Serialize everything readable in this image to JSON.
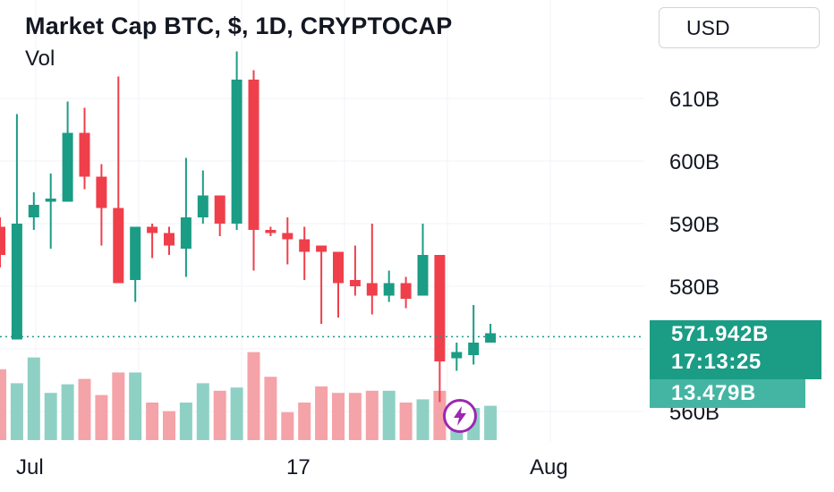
{
  "header": {
    "title": "Market Cap BTC, $, 1D, CRYPTOCAP",
    "indicator": "Vol",
    "currency": "USD"
  },
  "price_tag": {
    "value": "571.942B",
    "countdown": "17:13:25"
  },
  "volume_tag": {
    "value": "13.479B"
  },
  "colors": {
    "up": "#1b9c85",
    "down": "#ef3f4b",
    "up_vol": "#8fd0c5",
    "down_vol": "#f4a3a8",
    "price_line": "#1b9c85"
  },
  "icons": {
    "alert": "lightning-bolt-icon"
  },
  "chart_data": {
    "type": "candlestick",
    "y_unit": "B USD",
    "ylim": [
      560,
      620
    ],
    "y_ticks": [
      "610B",
      "600B",
      "590B",
      "580B",
      "560B"
    ],
    "y_tick_values": [
      610,
      600,
      590,
      580,
      560
    ],
    "x_ticks": [
      "Jul",
      "17",
      "Aug"
    ],
    "last_price": 571.942,
    "grid": true,
    "candles": [
      {
        "o": 589.5,
        "h": 591.0,
        "l": 583.0,
        "c": 585.0,
        "v": 0.66
      },
      {
        "o": 571.5,
        "h": 607.5,
        "l": 571.5,
        "c": 590.0,
        "v": 0.53
      },
      {
        "o": 591.0,
        "h": 595.0,
        "l": 589.0,
        "c": 593.0,
        "v": 0.77
      },
      {
        "o": 593.5,
        "h": 598.0,
        "l": 586.0,
        "c": 594.0,
        "v": 0.44
      },
      {
        "o": 593.5,
        "h": 609.5,
        "l": 593.5,
        "c": 604.5,
        "v": 0.52
      },
      {
        "o": 604.5,
        "h": 608.5,
        "l": 595.5,
        "c": 597.5,
        "v": 0.57
      },
      {
        "o": 597.5,
        "h": 599.5,
        "l": 586.5,
        "c": 592.5,
        "v": 0.42
      },
      {
        "o": 592.5,
        "h": 613.5,
        "l": 580.5,
        "c": 580.5,
        "v": 0.63
      },
      {
        "o": 581.0,
        "h": 589.5,
        "l": 577.5,
        "c": 589.5,
        "v": 0.63
      },
      {
        "o": 589.5,
        "h": 590.0,
        "l": 584.5,
        "c": 588.5,
        "v": 0.35
      },
      {
        "o": 588.5,
        "h": 589.5,
        "l": 585.0,
        "c": 586.5,
        "v": 0.27
      },
      {
        "o": 586.0,
        "h": 600.5,
        "l": 581.5,
        "c": 591.0,
        "v": 0.35
      },
      {
        "o": 591.0,
        "h": 598.5,
        "l": 590.0,
        "c": 594.5,
        "v": 0.53
      },
      {
        "o": 594.5,
        "h": 594.5,
        "l": 588.0,
        "c": 590.0,
        "v": 0.46
      },
      {
        "o": 590.0,
        "h": 617.5,
        "l": 589.0,
        "c": 613.0,
        "v": 0.49
      },
      {
        "o": 613.0,
        "h": 614.5,
        "l": 582.5,
        "c": 589.0,
        "v": 0.82
      },
      {
        "o": 589.0,
        "h": 589.5,
        "l": 588.0,
        "c": 588.5,
        "v": 0.59
      },
      {
        "o": 588.5,
        "h": 591.0,
        "l": 583.5,
        "c": 587.5,
        "v": 0.26
      },
      {
        "o": 587.5,
        "h": 589.5,
        "l": 581.0,
        "c": 585.5,
        "v": 0.35
      },
      {
        "o": 586.5,
        "h": 586.5,
        "l": 574.0,
        "c": 585.5,
        "v": 0.5
      },
      {
        "o": 585.5,
        "h": 585.5,
        "l": 575.0,
        "c": 580.5,
        "v": 0.44
      },
      {
        "o": 581.0,
        "h": 586.5,
        "l": 578.5,
        "c": 580.0,
        "v": 0.44
      },
      {
        "o": 580.5,
        "h": 590.0,
        "l": 575.5,
        "c": 578.5,
        "v": 0.46
      },
      {
        "o": 578.5,
        "h": 582.5,
        "l": 577.5,
        "c": 580.5,
        "v": 0.46
      },
      {
        "o": 580.5,
        "h": 581.5,
        "l": 576.5,
        "c": 578.0,
        "v": 0.35
      },
      {
        "o": 578.5,
        "h": 590.0,
        "l": 578.5,
        "c": 585.0,
        "v": 0.38
      },
      {
        "o": 585.0,
        "h": 585.0,
        "l": 561.5,
        "c": 568.0,
        "v": 0.46
      },
      {
        "o": 568.5,
        "h": 571.0,
        "l": 566.5,
        "c": 569.5,
        "v": 0.28
      },
      {
        "o": 569.0,
        "h": 577.0,
        "l": 567.5,
        "c": 571.0,
        "v": 0.3
      },
      {
        "o": 571.0,
        "h": 574.0,
        "l": 571.0,
        "c": 572.5,
        "v": 0.32
      }
    ]
  }
}
